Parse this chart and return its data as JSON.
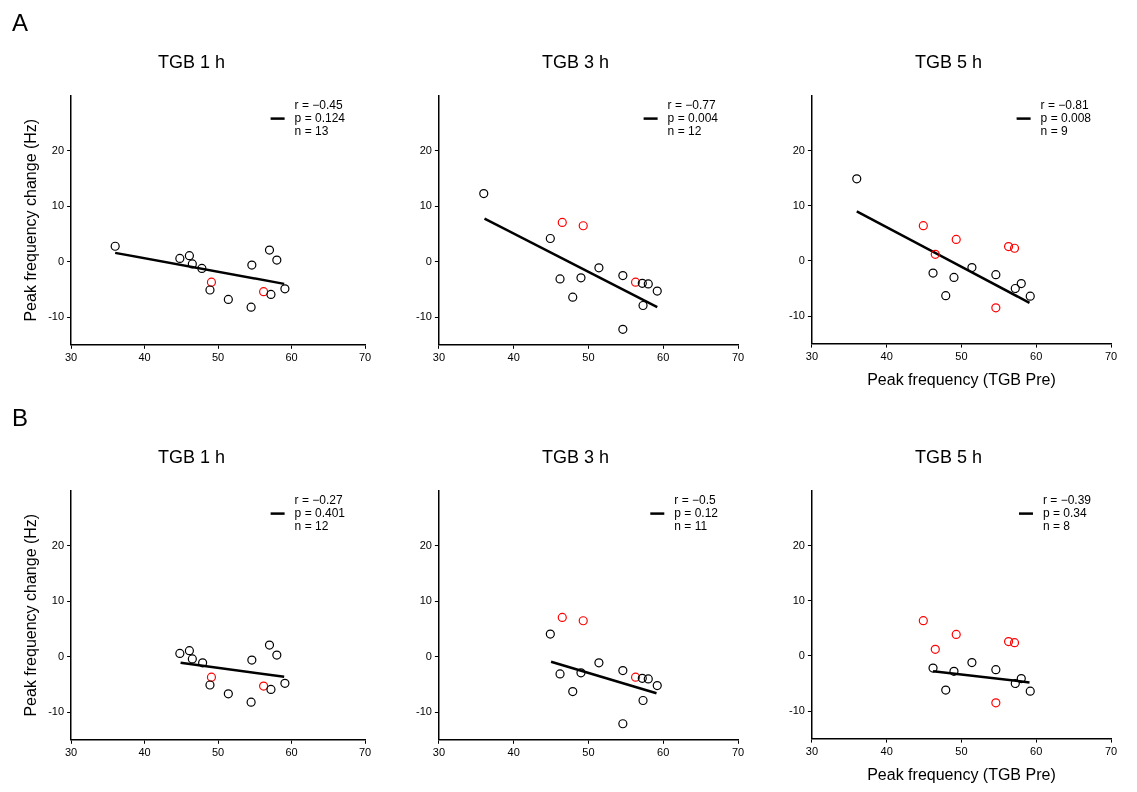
{
  "chart_data": [
    {
      "type": "scatter",
      "title": "TGB 1 h",
      "ylabel": "Peak frequency change (Hz)",
      "annotations": [
        "A"
      ],
      "xlim": [
        30,
        70
      ],
      "ylim": [
        -15,
        30
      ],
      "xticks": [
        30,
        40,
        50,
        60,
        70
      ],
      "yticks": [
        -10,
        0,
        10,
        20
      ],
      "grid": false,
      "legend": "top right",
      "marker": "circle",
      "series": [
        {
          "type": "scatter",
          "color": "#000000",
          "x": [
            36.0,
            44.8,
            46.1,
            46.5,
            47.8,
            48.9,
            51.4,
            54.5,
            54.6,
            57.0,
            57.2,
            58.0,
            59.1
          ],
          "values": [
            2.8,
            0.6,
            1.1,
            -0.4,
            -1.2,
            -5.1,
            -6.8,
            -8.2,
            -0.6,
            2.1,
            -5.9,
            0.3,
            -4.9
          ]
        },
        {
          "type": "scatter",
          "color": "#ff0000",
          "x": [
            49.1,
            56.2
          ],
          "values": [
            -3.7,
            -5.4
          ]
        },
        {
          "type": "line",
          "marker": "none",
          "name": "r = −0.45\np = 0.124\nn = 13",
          "color": "#000000",
          "x": [
            36.0,
            59.0
          ],
          "values": [
            1.6,
            -4.0
          ]
        }
      ]
    },
    {
      "type": "scatter",
      "title": "TGB 3 h",
      "xlim": [
        30,
        70
      ],
      "ylim": [
        -15,
        30
      ],
      "xticks": [
        30,
        40,
        50,
        60,
        70
      ],
      "yticks": [
        -10,
        0,
        10,
        20
      ],
      "grid": false,
      "legend": "top right",
      "marker": "circle",
      "series": [
        {
          "type": "scatter",
          "color": "#000000",
          "x": [
            36.0,
            44.9,
            46.2,
            47.9,
            49.0,
            51.4,
            54.6,
            57.2,
            58.0,
            59.2,
            57.3,
            54.6
          ],
          "values": [
            12.3,
            4.2,
            -3.1,
            -6.4,
            -2.9,
            -1.1,
            -2.5,
            -3.9,
            -4.0,
            -5.3,
            -7.9,
            -12.2
          ]
        },
        {
          "type": "scatter",
          "color": "#ff0000",
          "x": [
            46.5,
            49.3,
            56.3
          ],
          "values": [
            7.1,
            6.5,
            -3.7
          ]
        },
        {
          "type": "line",
          "marker": "none",
          "name": "r = −0.77\np = 0.004\nn = 12",
          "color": "#000000",
          "x": [
            36.1,
            59.2
          ],
          "values": [
            7.8,
            -8.2
          ]
        }
      ]
    },
    {
      "type": "scatter",
      "title": "TGB 5 h",
      "xlabel": "Peak frequency (TGB Pre)",
      "xlim": [
        30,
        70
      ],
      "ylim": [
        -15,
        30
      ],
      "xticks": [
        30,
        40,
        50,
        60,
        70
      ],
      "yticks": [
        -10,
        0,
        10,
        20
      ],
      "grid": false,
      "legend": "top right",
      "marker": "circle",
      "series": [
        {
          "type": "scatter",
          "color": "#000000",
          "x": [
            36.0,
            46.2,
            49.0,
            47.9,
            51.4,
            54.6,
            58.0,
            57.2,
            59.2
          ],
          "values": [
            14.9,
            -2.2,
            -3.0,
            -6.3,
            -1.2,
            -2.5,
            -4.1,
            -5.0,
            -6.4
          ]
        },
        {
          "type": "scatter",
          "color": "#ff0000",
          "x": [
            44.9,
            49.3,
            46.5,
            56.3,
            57.1,
            54.6
          ],
          "values": [
            6.4,
            3.9,
            1.2,
            2.6,
            2.3,
            -8.5
          ]
        },
        {
          "type": "line",
          "marker": "none",
          "name": "r = −0.81\np = 0.008\nn = 9",
          "color": "#000000",
          "x": [
            36.0,
            59.1
          ],
          "values": [
            9.0,
            -7.6
          ]
        }
      ]
    },
    {
      "type": "scatter",
      "title": "TGB 1 h",
      "ylabel": "Peak frequency change (Hz)",
      "annotations": [
        "B"
      ],
      "xlim": [
        30,
        70
      ],
      "ylim": [
        -15,
        30
      ],
      "xticks": [
        30,
        40,
        50,
        60,
        70
      ],
      "yticks": [
        -10,
        0,
        10,
        20
      ],
      "grid": false,
      "legend": "top right",
      "marker": "circle",
      "series": [
        {
          "type": "scatter",
          "color": "#000000",
          "x": [
            44.8,
            46.1,
            46.5,
            47.9,
            48.9,
            51.4,
            54.5,
            54.6,
            57.0,
            57.2,
            58.0,
            59.1
          ],
          "values": [
            0.6,
            1.1,
            -0.4,
            -1.1,
            -5.1,
            -6.7,
            -8.2,
            -0.6,
            2.1,
            -5.9,
            0.3,
            -4.8
          ]
        },
        {
          "type": "scatter",
          "color": "#ff0000",
          "x": [
            49.1,
            56.2
          ],
          "values": [
            -3.7,
            -5.3
          ]
        },
        {
          "type": "line",
          "marker": "none",
          "name": "r = −0.27\np = 0.401\nn = 12",
          "color": "#000000",
          "x": [
            44.9,
            59.0
          ],
          "values": [
            -1.1,
            -3.6
          ]
        }
      ]
    },
    {
      "type": "scatter",
      "title": "TGB 3 h",
      "xlim": [
        30,
        70
      ],
      "ylim": [
        -15,
        30
      ],
      "xticks": [
        30,
        40,
        50,
        60,
        70
      ],
      "yticks": [
        -10,
        0,
        10,
        20
      ],
      "grid": false,
      "legend": "top right",
      "marker": "circle",
      "series": [
        {
          "type": "scatter",
          "color": "#000000",
          "x": [
            44.9,
            46.2,
            47.9,
            49.0,
            51.4,
            54.6,
            57.2,
            58.0,
            59.2,
            57.3,
            54.6
          ],
          "values": [
            4.1,
            -3.1,
            -6.3,
            -2.9,
            -1.1,
            -2.5,
            -3.9,
            -4.0,
            -5.2,
            -7.9,
            -12.1
          ]
        },
        {
          "type": "scatter",
          "color": "#ff0000",
          "x": [
            46.5,
            49.3,
            56.3
          ],
          "values": [
            7.1,
            6.5,
            -3.7
          ]
        },
        {
          "type": "line",
          "marker": "none",
          "name": "r = −0.5\np = 0.12\nn = 11",
          "color": "#000000",
          "x": [
            45.0,
            59.1
          ],
          "values": [
            -0.9,
            -6.6
          ]
        }
      ]
    },
    {
      "type": "scatter",
      "title": "TGB 5 h",
      "xlabel": "Peak frequency (TGB Pre)",
      "xlim": [
        30,
        70
      ],
      "ylim": [
        -15,
        30
      ],
      "xticks": [
        30,
        40,
        50,
        60,
        70
      ],
      "yticks": [
        -10,
        0,
        10,
        20
      ],
      "grid": false,
      "legend": "top right",
      "marker": "circle",
      "series": [
        {
          "type": "scatter",
          "color": "#000000",
          "x": [
            46.2,
            49.0,
            47.9,
            51.4,
            54.6,
            58.0,
            57.2,
            59.2
          ],
          "values": [
            -2.2,
            -2.8,
            -6.2,
            -1.2,
            -2.5,
            -4.1,
            -5.0,
            -6.4
          ]
        },
        {
          "type": "scatter",
          "color": "#ff0000",
          "x": [
            44.9,
            49.3,
            46.5,
            56.3,
            57.1,
            54.6
          ],
          "values": [
            6.4,
            3.9,
            1.2,
            2.6,
            2.4,
            -8.5
          ]
        },
        {
          "type": "line",
          "marker": "none",
          "name": "r = −0.39\np = 0.34\nn = 8",
          "color": "#000000",
          "x": [
            46.2,
            59.1
          ],
          "values": [
            -2.8,
            -4.8
          ]
        }
      ]
    }
  ]
}
